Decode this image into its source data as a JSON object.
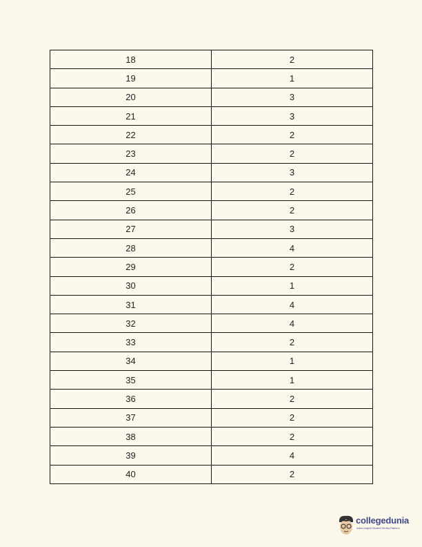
{
  "table": {
    "rows": [
      [
        "18",
        "2"
      ],
      [
        "19",
        "1"
      ],
      [
        "20",
        "3"
      ],
      [
        "21",
        "3"
      ],
      [
        "22",
        "2"
      ],
      [
        "23",
        "2"
      ],
      [
        "24",
        "3"
      ],
      [
        "25",
        "2"
      ],
      [
        "26",
        "2"
      ],
      [
        "27",
        "3"
      ],
      [
        "28",
        "4"
      ],
      [
        "29",
        "2"
      ],
      [
        "30",
        "1"
      ],
      [
        "31",
        "4"
      ],
      [
        "32",
        "4"
      ],
      [
        "33",
        "2"
      ],
      [
        "34",
        "1"
      ],
      [
        "35",
        "1"
      ],
      [
        "36",
        "2"
      ],
      [
        "37",
        "2"
      ],
      [
        "38",
        "2"
      ],
      [
        "39",
        "4"
      ],
      [
        "40",
        "2"
      ]
    ]
  },
  "logo": {
    "brand": "collegedunia",
    "tagline": "India's largest Student Review Platform",
    "color": "#3d4a8a"
  }
}
